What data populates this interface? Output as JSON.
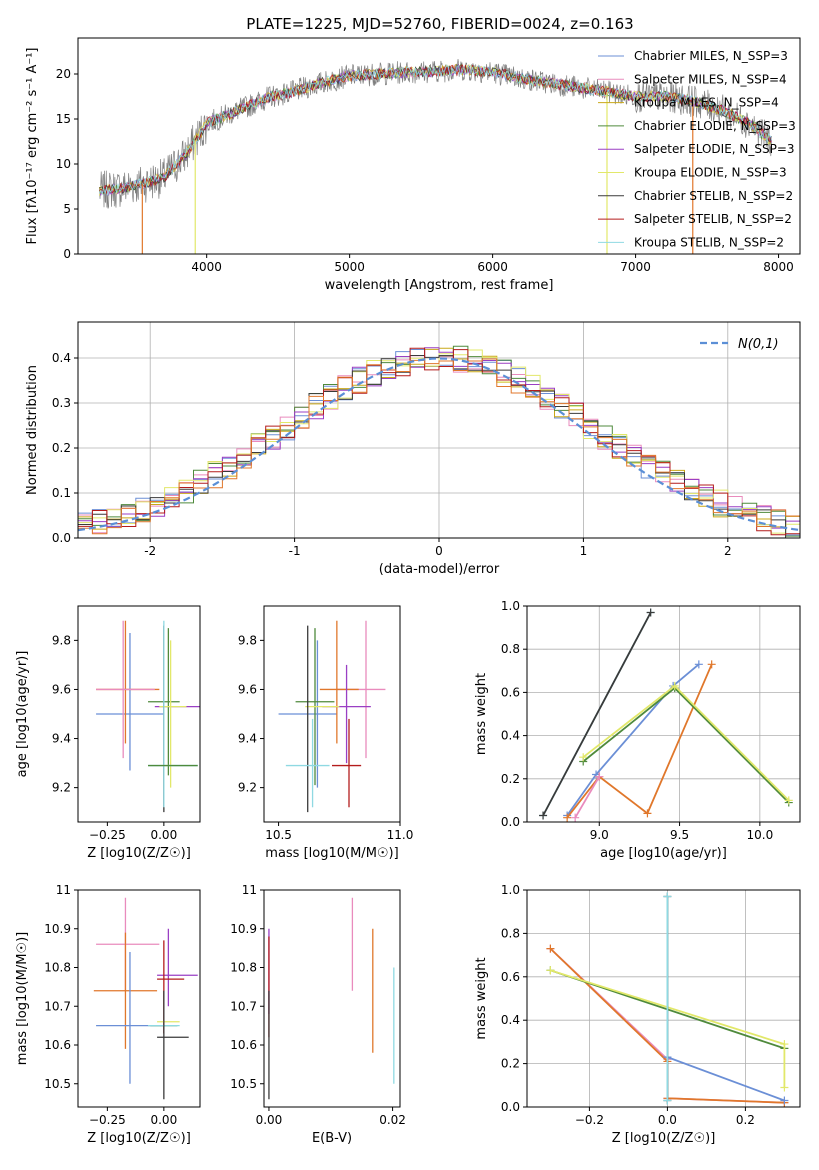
{
  "figure": {
    "title": "PLATE=1225, MJD=52760, FIBERID=0024, z=0.163"
  },
  "colors": {
    "Chabrier MILES": "#6b8fd6",
    "Salpeter MILES": "#e98bbd",
    "Kroupa MILES": "#c9a818",
    "Chabrier ELODIE": "#4f8a3c",
    "Salpeter ELODIE": "#9a3fc4",
    "Kroupa ELODIE": "#e2e86a",
    "Chabrier STELIB": "#3a3a3a",
    "Salpeter STELIB": "#b41c1c",
    "Kroupa STELIB": "#8fd9e2",
    "orange": "#e0772b",
    "data": "#7f7f7f",
    "normal": "#5b8fd6"
  },
  "chart_data": [
    {
      "type": "line",
      "panel": "spectrum",
      "xlabel": "wavelength [Angstrom, rest frame]",
      "ylabel": "Flux [fλ10⁻¹⁷ erg cm⁻² s⁻¹ A⁻¹]",
      "xlim": [
        3100,
        8150
      ],
      "ylim": [
        0,
        24
      ],
      "xticks": [
        4000,
        5000,
        6000,
        7000,
        8000
      ],
      "yticks": [
        0,
        5,
        10,
        15,
        20
      ],
      "legend_position": "top-right",
      "legend": [
        "Chabrier MILES, N_SSP=3",
        "Salpeter MILES, N_SSP=4",
        "Kroupa MILES, N_SSP=4",
        "Chabrier ELODIE, N_SSP=3",
        "Salpeter ELODIE, N_SSP=3",
        "Kroupa ELODIE, N_SSP=3",
        "Chabrier STELIB, N_SSP=2",
        "Salpeter STELIB, N_SSP=2",
        "Kroupa STELIB, N_SSP=2"
      ],
      "series_keys": [
        "Chabrier MILES",
        "Salpeter MILES",
        "Kroupa MILES",
        "Chabrier ELODIE",
        "Salpeter ELODIE",
        "Kroupa ELODIE",
        "Chabrier STELIB",
        "Salpeter STELIB",
        "Kroupa STELIB"
      ],
      "continuum": {
        "x": [
          3250,
          3400,
          3550,
          3700,
          3850,
          4000,
          4150,
          4300,
          4450,
          4600,
          4800,
          5000,
          5200,
          5400,
          5600,
          5800,
          6000,
          6200,
          6400,
          6600,
          6800,
          7000,
          7200,
          7400,
          7600,
          7800,
          7950
        ],
        "y": [
          7.0,
          7.3,
          7.8,
          8.5,
          11.0,
          14.5,
          15.5,
          16.5,
          17.5,
          18.0,
          19.0,
          19.8,
          20.0,
          20.2,
          20.3,
          20.5,
          20.2,
          19.5,
          19.0,
          18.5,
          18.0,
          17.5,
          17.5,
          17.0,
          16.0,
          14.5,
          12.5
        ]
      },
      "drops": [
        {
          "x": 3550,
          "y": 0
        },
        {
          "x": 3920,
          "y": 0
        },
        {
          "x": 6800,
          "y": 0
        },
        {
          "x": 7400,
          "y": 0
        }
      ]
    },
    {
      "type": "line",
      "panel": "residual-histogram",
      "xlabel": "(data-model)/error",
      "ylabel": "Normed distribution",
      "xlim": [
        -2.5,
        2.5
      ],
      "ylim": [
        0,
        0.48
      ],
      "xticks": [
        -2,
        -1,
        0,
        1,
        2
      ],
      "yticks": [
        0.0,
        0.1,
        0.2,
        0.3,
        0.4
      ],
      "grid": true,
      "legend_position": "top-right",
      "legend": [
        "N(0,1)"
      ],
      "bin_width": 0.1
    },
    {
      "type": "scatter",
      "panel": "Z-vs-age",
      "xlabel": "Z [log10(Z/Z☉)]",
      "ylabel": "age  [log10(age/yr)]",
      "xlim": [
        -0.38,
        0.16
      ],
      "ylim": [
        9.06,
        9.94
      ],
      "xticks": [
        -0.25,
        0.0
      ],
      "xticklabels": [
        "−0.25",
        "0.00"
      ],
      "yticks": [
        9.2,
        9.4,
        9.6,
        9.8
      ],
      "points": [
        {
          "key": "Chabrier MILES",
          "x": -0.15,
          "xerr": 0.15,
          "y": 9.5,
          "yerr": 0.0
        },
        {
          "key": "Chabrier MILES",
          "x": -0.15,
          "xerr": 0.0,
          "y": 9.55,
          "yerr": 0.28
        },
        {
          "key": "orange",
          "x": -0.16,
          "xerr": 0.14,
          "y": 9.6,
          "yerr": 0.0
        },
        {
          "key": "orange",
          "x": -0.17,
          "xerr": 0.0,
          "y": 9.63,
          "yerr": 0.25
        },
        {
          "key": "Salpeter MILES",
          "x": -0.17,
          "xerr": 0.13,
          "y": 9.6,
          "yerr": 0.0
        },
        {
          "key": "Salpeter MILES",
          "x": -0.18,
          "xerr": 0.0,
          "y": 9.6,
          "yerr": 0.28
        },
        {
          "key": "Salpeter ELODIE",
          "x": 0.06,
          "xerr": 0.1,
          "y": 9.53,
          "yerr": 0.0
        },
        {
          "key": "Chabrier ELODIE",
          "x": 0.0,
          "xerr": 0.07,
          "y": 9.55,
          "yerr": 0.0
        },
        {
          "key": "Chabrier ELODIE",
          "x": 0.02,
          "xerr": 0.0,
          "y": 9.55,
          "yerr": 0.3
        },
        {
          "key": "Kroupa ELODIE",
          "x": 0.04,
          "xerr": 0.06,
          "y": 9.53,
          "yerr": 0.0
        },
        {
          "key": "Kroupa ELODIE",
          "x": 0.03,
          "xerr": 0.0,
          "y": 9.5,
          "yerr": 0.3
        },
        {
          "key": "Chabrier STELIB",
          "x": 0.0,
          "xerr": 0.0,
          "y": 9.48,
          "yerr": 0.38
        },
        {
          "key": "Kroupa STELIB",
          "x": 0.04,
          "xerr": 0.11,
          "y": 9.29,
          "yerr": 0.0
        },
        {
          "key": "Kroupa STELIB",
          "x": 0.0,
          "xerr": 0.0,
          "y": 9.5,
          "yerr": 0.38
        },
        {
          "key": "Chabrier ELODIE",
          "x": 0.04,
          "xerr": 0.11,
          "y": 9.29,
          "yerr": 0.0
        }
      ]
    },
    {
      "type": "scatter",
      "panel": "mass-vs-age",
      "xlabel": "mass [log10(M/M☉)]",
      "xlim": [
        10.44,
        11.0
      ],
      "ylim": [
        9.06,
        9.94
      ],
      "xticks": [
        10.5,
        11.0
      ],
      "xticklabels": [
        "10.5",
        "11.0"
      ],
      "yticks": [
        9.2,
        9.4,
        9.6,
        9.8
      ],
      "points": [
        {
          "key": "Chabrier MILES",
          "x": 10.62,
          "xerr": 0.12,
          "y": 9.5,
          "yerr": 0.0
        },
        {
          "key": "Chabrier MILES",
          "x": 10.66,
          "xerr": 0.0,
          "y": 9.5,
          "yerr": 0.3
        },
        {
          "key": "Salpeter MILES",
          "x": 10.84,
          "xerr": 0.1,
          "y": 9.6,
          "yerr": 0.0
        },
        {
          "key": "Salpeter MILES",
          "x": 10.86,
          "xerr": 0.0,
          "y": 9.6,
          "yerr": 0.28
        },
        {
          "key": "orange",
          "x": 10.75,
          "xerr": 0.08,
          "y": 9.6,
          "yerr": 0.0
        },
        {
          "key": "orange",
          "x": 10.74,
          "xerr": 0.0,
          "y": 9.63,
          "yerr": 0.25
        },
        {
          "key": "Chabrier ELODIE",
          "x": 10.65,
          "xerr": 0.08,
          "y": 9.55,
          "yerr": 0.0
        },
        {
          "key": "Chabrier ELODIE",
          "x": 10.65,
          "xerr": 0.0,
          "y": 9.53,
          "yerr": 0.32
        },
        {
          "key": "Salpeter ELODIE",
          "x": 10.78,
          "xerr": 0.1,
          "y": 9.53,
          "yerr": 0.0
        },
        {
          "key": "Salpeter ELODIE",
          "x": 10.78,
          "xerr": 0.0,
          "y": 9.5,
          "yerr": 0.2
        },
        {
          "key": "Kroupa ELODIE",
          "x": 10.68,
          "xerr": 0.07,
          "y": 9.53,
          "yerr": 0.0
        },
        {
          "key": "Chabrier STELIB",
          "x": 10.62,
          "xerr": 0.0,
          "y": 9.48,
          "yerr": 0.38
        },
        {
          "key": "Kroupa STELIB",
          "x": 10.62,
          "xerr": 0.09,
          "y": 9.29,
          "yerr": 0.0
        },
        {
          "key": "Kroupa STELIB",
          "x": 10.64,
          "xerr": 0.0,
          "y": 9.3,
          "yerr": 0.18
        },
        {
          "key": "Salpeter STELIB",
          "x": 10.78,
          "xerr": 0.06,
          "y": 9.29,
          "yerr": 0.0
        },
        {
          "key": "Salpeter STELIB",
          "x": 10.79,
          "xerr": 0.0,
          "y": 9.3,
          "yerr": 0.18
        }
      ]
    },
    {
      "type": "line",
      "panel": "age-mass-weight",
      "xlabel": "age  [log10(age/yr)]",
      "ylabel": "mass weight",
      "xlim": [
        8.55,
        10.25
      ],
      "ylim": [
        0.0,
        1.0
      ],
      "xticks": [
        9.0,
        9.5,
        10.0
      ],
      "xticklabels": [
        "9.0",
        "9.5",
        "10.0"
      ],
      "yticks": [
        0.0,
        0.2,
        0.4,
        0.6,
        0.8,
        1.0
      ],
      "grid": true,
      "series": [
        {
          "key": "Kroupa STELIB",
          "x": [
            8.65,
            9.32
          ],
          "y": [
            0.03,
            0.97
          ]
        },
        {
          "key": "Chabrier STELIB",
          "x": [
            8.65,
            9.32
          ],
          "y": [
            0.03,
            0.97
          ]
        },
        {
          "key": "Chabrier MILES",
          "x": [
            8.8,
            8.98,
            9.46,
            9.62
          ],
          "y": [
            0.03,
            0.22,
            0.63,
            0.73
          ]
        },
        {
          "key": "orange",
          "x": [
            8.8,
            9.0,
            9.3,
            9.7
          ],
          "y": [
            0.02,
            0.21,
            0.04,
            0.73
          ]
        },
        {
          "key": "Salpeter MILES",
          "x": [
            8.85,
            9.0
          ],
          "y": [
            0.02,
            0.21
          ]
        },
        {
          "key": "Chabrier ELODIE",
          "x": [
            8.9,
            9.47,
            10.18
          ],
          "y": [
            0.28,
            0.62,
            0.09
          ]
        },
        {
          "key": "Kroupa ELODIE",
          "x": [
            8.9,
            9.47,
            10.18
          ],
          "y": [
            0.3,
            0.63,
            0.1
          ]
        }
      ]
    },
    {
      "type": "scatter",
      "panel": "Z-vs-mass",
      "xlabel": "Z [log10(Z/Z☉)]",
      "ylabel": "mass [log10(M/M☉)]",
      "xlim": [
        -0.38,
        0.16
      ],
      "ylim": [
        10.44,
        11.0
      ],
      "xticks": [
        -0.25,
        0.0
      ],
      "xticklabels": [
        "−0.25",
        "0.00"
      ],
      "yticks": [
        10.5,
        10.6,
        10.7,
        10.8,
        10.9,
        11.0
      ],
      "points": [
        {
          "key": "Salpeter MILES",
          "x": -0.16,
          "xerr": 0.14,
          "y": 10.86,
          "yerr": 0.0
        },
        {
          "key": "Salpeter MILES",
          "x": -0.17,
          "xerr": 0.0,
          "y": 10.86,
          "yerr": 0.12
        },
        {
          "key": "orange",
          "x": -0.17,
          "xerr": 0.14,
          "y": 10.74,
          "yerr": 0.0
        },
        {
          "key": "orange",
          "x": -0.17,
          "xerr": 0.0,
          "y": 10.74,
          "yerr": 0.15
        },
        {
          "key": "Chabrier MILES",
          "x": -0.15,
          "xerr": 0.15,
          "y": 10.65,
          "yerr": 0.0
        },
        {
          "key": "Chabrier MILES",
          "x": -0.15,
          "xerr": 0.0,
          "y": 10.67,
          "yerr": 0.17
        },
        {
          "key": "Salpeter ELODIE",
          "x": 0.06,
          "xerr": 0.09,
          "y": 10.78,
          "yerr": 0.0
        },
        {
          "key": "Salpeter ELODIE",
          "x": 0.02,
          "xerr": 0.0,
          "y": 10.8,
          "yerr": 0.1
        },
        {
          "key": "Salpeter STELIB",
          "x": 0.03,
          "xerr": 0.06,
          "y": 10.77,
          "yerr": 0.0
        },
        {
          "key": "Salpeter STELIB",
          "x": 0.0,
          "xerr": 0.0,
          "y": 10.75,
          "yerr": 0.12
        },
        {
          "key": "Kroupa ELODIE",
          "x": 0.02,
          "xerr": 0.05,
          "y": 10.66,
          "yerr": 0.0
        },
        {
          "key": "Chabrier ELODIE",
          "x": 0.0,
          "xerr": 0.06,
          "y": 10.65,
          "yerr": 0.0
        },
        {
          "key": "Kroupa STELIB",
          "x": 0.0,
          "xerr": 0.07,
          "y": 10.65,
          "yerr": 0.0
        },
        {
          "key": "Chabrier STELIB",
          "x": 0.04,
          "xerr": 0.07,
          "y": 10.62,
          "yerr": 0.0
        },
        {
          "key": "Chabrier STELIB",
          "x": 0.0,
          "xerr": 0.0,
          "y": 10.6,
          "yerr": 0.14
        }
      ]
    },
    {
      "type": "scatter",
      "panel": "EBV-vs-mass",
      "xlabel": "E(B-V)",
      "xlim": [
        -0.0008,
        0.0212
      ],
      "ylim": [
        10.44,
        11.0
      ],
      "xticks": [
        0.0,
        0.02
      ],
      "xticklabels": [
        "0.00",
        "0.02"
      ],
      "yticks": [
        10.5,
        10.6,
        10.7,
        10.8,
        10.9,
        11.0
      ],
      "points": [
        {
          "key": "Salpeter ELODIE",
          "x": 0.0,
          "xerr": 0.0,
          "y": 10.79,
          "yerr": 0.11
        },
        {
          "key": "Salpeter STELIB",
          "x": 0.0,
          "xerr": 0.0,
          "y": 10.75,
          "yerr": 0.13
        },
        {
          "key": "Chabrier STELIB",
          "x": 0.0,
          "xerr": 0.0,
          "y": 10.6,
          "yerr": 0.14
        },
        {
          "key": "Salpeter MILES",
          "x": 0.0135,
          "xerr": 0.0,
          "y": 10.86,
          "yerr": 0.12
        },
        {
          "key": "orange",
          "x": 0.0168,
          "xerr": 0.0,
          "y": 10.74,
          "yerr": 0.16
        },
        {
          "key": "Kroupa STELIB",
          "x": 0.0202,
          "xerr": 0.0,
          "y": 10.65,
          "yerr": 0.15
        }
      ]
    },
    {
      "type": "line",
      "panel": "Z-mass-weight",
      "xlabel": "Z [log10(Z/Z☉)]",
      "ylabel": "mass weight",
      "xlim": [
        -0.36,
        0.34
      ],
      "ylim": [
        0.0,
        1.0
      ],
      "xticks": [
        -0.2,
        0.0,
        0.2
      ],
      "xticklabels": [
        "−0.2",
        "0.0",
        "0.2"
      ],
      "yticks": [
        0.0,
        0.2,
        0.4,
        0.6,
        0.8,
        1.0
      ],
      "grid": true,
      "series": [
        {
          "key": "Salpeter MILES",
          "x": [
            -0.3,
            0.0,
            0.0,
            0.3
          ],
          "y": [
            0.73,
            0.22,
            0.04,
            0.02
          ]
        },
        {
          "key": "orange",
          "x": [
            -0.3,
            0.0,
            0.0,
            0.3
          ],
          "y": [
            0.73,
            0.21,
            0.04,
            0.02
          ]
        },
        {
          "key": "Chabrier MILES",
          "x": [
            0.0,
            0.3
          ],
          "y": [
            0.23,
            0.03
          ]
        },
        {
          "key": "Chabrier ELODIE",
          "x": [
            -0.3,
            0.3
          ],
          "y": [
            0.63,
            0.27
          ]
        },
        {
          "key": "Kroupa ELODIE",
          "x": [
            -0.3,
            0.3,
            0.3
          ],
          "y": [
            0.63,
            0.29,
            0.09
          ]
        },
        {
          "key": "Chabrier STELIB",
          "x": [
            0.0,
            0.0
          ],
          "y": [
            0.03,
            0.97
          ]
        },
        {
          "key": "Kroupa STELIB",
          "x": [
            0.0,
            0.0
          ],
          "y": [
            0.03,
            0.97
          ]
        }
      ]
    }
  ]
}
